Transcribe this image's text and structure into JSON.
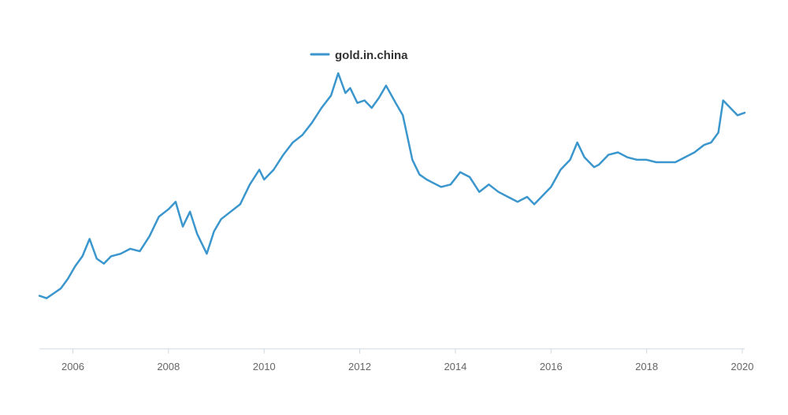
{
  "chart_data": {
    "type": "line",
    "title": "",
    "xlabel": "",
    "ylabel": "",
    "grid": false,
    "legend_position": "top-center",
    "xlim": [
      2005.3,
      2020.05
    ],
    "ylim": [
      0,
      1
    ],
    "x_ticks": [
      "2006",
      "2008",
      "2010",
      "2012",
      "2014",
      "2016",
      "2018",
      "2020"
    ],
    "series": [
      {
        "name": "gold.in.china",
        "color": "#3a96cc",
        "x": [
          2005.3,
          2005.45,
          2005.6,
          2005.75,
          2005.9,
          2006.05,
          2006.2,
          2006.35,
          2006.5,
          2006.65,
          2006.8,
          2007.0,
          2007.2,
          2007.4,
          2007.6,
          2007.8,
          2008.0,
          2008.15,
          2008.3,
          2008.45,
          2008.6,
          2008.8,
          2008.95,
          2009.1,
          2009.3,
          2009.5,
          2009.7,
          2009.9,
          2010.0,
          2010.2,
          2010.4,
          2010.6,
          2010.8,
          2011.0,
          2011.2,
          2011.4,
          2011.55,
          2011.7,
          2011.8,
          2011.95,
          2012.1,
          2012.25,
          2012.4,
          2012.55,
          2012.75,
          2012.9,
          2013.1,
          2013.25,
          2013.4,
          2013.5,
          2013.7,
          2013.9,
          2014.1,
          2014.3,
          2014.5,
          2014.7,
          2014.9,
          2015.1,
          2015.3,
          2015.5,
          2015.65,
          2015.8,
          2016.0,
          2016.2,
          2016.4,
          2016.55,
          2016.7,
          2016.9,
          2017.0,
          2017.2,
          2017.4,
          2017.6,
          2017.8,
          2018.0,
          2018.2,
          2018.4,
          2018.6,
          2018.8,
          2019.0,
          2019.2,
          2019.35,
          2019.5,
          2019.6,
          2019.75,
          2019.9,
          2020.05
        ],
        "values": [
          0.1,
          0.09,
          0.11,
          0.13,
          0.17,
          0.22,
          0.26,
          0.33,
          0.25,
          0.23,
          0.26,
          0.27,
          0.29,
          0.28,
          0.34,
          0.42,
          0.45,
          0.48,
          0.38,
          0.44,
          0.35,
          0.27,
          0.36,
          0.41,
          0.44,
          0.47,
          0.55,
          0.61,
          0.57,
          0.61,
          0.67,
          0.72,
          0.75,
          0.8,
          0.86,
          0.91,
          1.0,
          0.92,
          0.94,
          0.88,
          0.89,
          0.86,
          0.9,
          0.95,
          0.88,
          0.83,
          0.65,
          0.59,
          0.57,
          0.56,
          0.54,
          0.55,
          0.6,
          0.58,
          0.52,
          0.55,
          0.52,
          0.5,
          0.48,
          0.5,
          0.47,
          0.5,
          0.54,
          0.61,
          0.65,
          0.72,
          0.66,
          0.62,
          0.63,
          0.67,
          0.68,
          0.66,
          0.65,
          0.65,
          0.64,
          0.64,
          0.64,
          0.66,
          0.68,
          0.71,
          0.72,
          0.76,
          0.89,
          0.86,
          0.83,
          0.84
        ]
      }
    ]
  }
}
